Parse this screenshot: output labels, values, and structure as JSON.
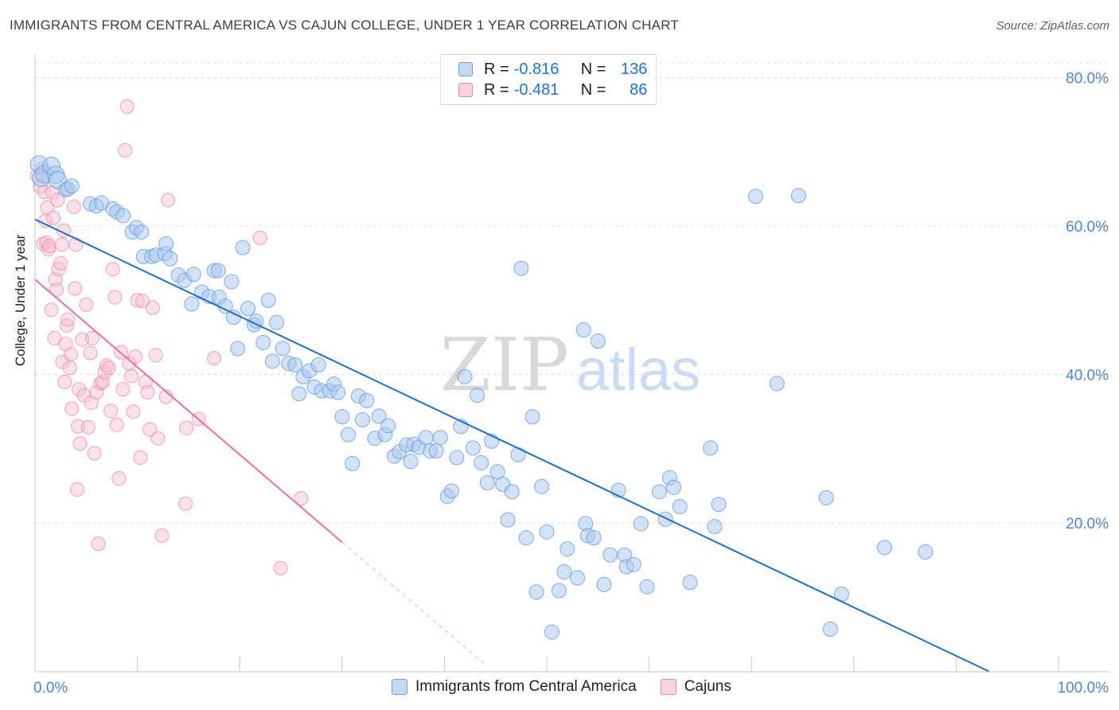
{
  "title": "IMMIGRANTS FROM CENTRAL AMERICA VS CAJUN COLLEGE, UNDER 1 YEAR CORRELATION CHART",
  "source": "Source: ZipAtlas.com",
  "watermark": {
    "zip": "ZIP",
    "atlas": "atlas"
  },
  "legend": {
    "rows": [
      {
        "r_label": "R =",
        "r_value": "-0.816",
        "n_label": "N =",
        "n_value": "136"
      },
      {
        "r_label": "R =",
        "r_value": "-0.481",
        "n_label": "N =",
        "n_value": "86"
      }
    ]
  },
  "colors": {
    "blue_fill": "#a8c7f0",
    "blue_stroke": "#6a9fe0",
    "blue_line": "#1a6fd6",
    "pink_fill": "#f7bfd0",
    "pink_stroke": "#ec8aab",
    "pink_line": "#e8709a",
    "tick_label": "#4a86d8",
    "grid": "#dadce0"
  },
  "chart_data": {
    "type": "scatter",
    "title": "IMMIGRANTS FROM CENTRAL AMERICA VS CAJUN COLLEGE, UNDER 1 YEAR CORRELATION CHART",
    "xlabel": "",
    "ylabel": "College, Under 1 year",
    "xlim": [
      0,
      100
    ],
    "ylim": [
      0,
      85
    ],
    "x_tick_labels": [
      "0.0%",
      "100.0%"
    ],
    "y_ticks": [
      20,
      40,
      60,
      80
    ],
    "y_tick_labels": [
      "20.0%",
      "40.0%",
      "60.0%",
      "80.0%"
    ],
    "grid": true,
    "legend_position": "top-center",
    "series": [
      {
        "name": "Immigrants from Central America",
        "color": "#a8c7f0",
        "trend": {
          "x0": 0,
          "y0": 60.9,
          "x1": 93.2,
          "y1": 0
        },
        "points": [
          [
            0.4,
            68.3
          ],
          [
            0.6,
            66.5
          ],
          [
            0.9,
            67.0
          ],
          [
            1.6,
            68.1
          ],
          [
            2.0,
            66.9
          ],
          [
            2.2,
            66.2
          ],
          [
            3.0,
            64.9
          ],
          [
            3.2,
            65.0
          ],
          [
            3.6,
            65.4
          ],
          [
            5.4,
            63.0
          ],
          [
            6.0,
            62.7
          ],
          [
            6.5,
            63.1
          ],
          [
            7.6,
            62.3
          ],
          [
            8.0,
            61.9
          ],
          [
            8.6,
            61.4
          ],
          [
            9.5,
            59.2
          ],
          [
            9.9,
            59.8
          ],
          [
            10.4,
            59.2
          ],
          [
            10.6,
            55.9
          ],
          [
            11.4,
            55.9
          ],
          [
            11.8,
            56.1
          ],
          [
            12.7,
            56.3
          ],
          [
            12.8,
            57.6
          ],
          [
            13.2,
            55.6
          ],
          [
            14.0,
            53.4
          ],
          [
            14.6,
            52.7
          ],
          [
            15.3,
            49.5
          ],
          [
            15.5,
            53.5
          ],
          [
            16.3,
            51.1
          ],
          [
            17.0,
            50.5
          ],
          [
            17.5,
            54.0
          ],
          [
            17.9,
            54.0
          ],
          [
            18.0,
            50.4
          ],
          [
            18.6,
            49.2
          ],
          [
            19.2,
            52.5
          ],
          [
            19.4,
            47.7
          ],
          [
            19.8,
            43.5
          ],
          [
            20.3,
            57.1
          ],
          [
            20.8,
            48.9
          ],
          [
            21.4,
            46.7
          ],
          [
            21.6,
            47.2
          ],
          [
            22.3,
            44.3
          ],
          [
            22.8,
            50.0
          ],
          [
            23.2,
            41.8
          ],
          [
            23.6,
            47.0
          ],
          [
            24.2,
            43.5
          ],
          [
            24.8,
            41.5
          ],
          [
            25.4,
            41.3
          ],
          [
            25.8,
            37.4
          ],
          [
            26.2,
            39.7
          ],
          [
            26.8,
            40.5
          ],
          [
            27.3,
            38.3
          ],
          [
            27.7,
            41.3
          ],
          [
            28.0,
            37.8
          ],
          [
            28.8,
            37.8
          ],
          [
            29.2,
            38.7
          ],
          [
            29.6,
            37.6
          ],
          [
            30.0,
            34.3
          ],
          [
            30.6,
            31.9
          ],
          [
            31.0,
            28.0
          ],
          [
            31.6,
            37.1
          ],
          [
            32.0,
            33.9
          ],
          [
            32.4,
            36.5
          ],
          [
            33.2,
            31.4
          ],
          [
            33.6,
            34.4
          ],
          [
            34.2,
            31.9
          ],
          [
            34.5,
            33.1
          ],
          [
            35.1,
            29.0
          ],
          [
            35.6,
            29.6
          ],
          [
            36.3,
            30.5
          ],
          [
            36.7,
            28.3
          ],
          [
            37.0,
            30.6
          ],
          [
            37.5,
            30.2
          ],
          [
            38.2,
            31.5
          ],
          [
            38.6,
            29.7
          ],
          [
            39.2,
            29.7
          ],
          [
            39.6,
            31.5
          ],
          [
            40.3,
            23.6
          ],
          [
            40.7,
            24.3
          ],
          [
            41.2,
            28.8
          ],
          [
            41.6,
            33.0
          ],
          [
            42.0,
            39.7
          ],
          [
            42.8,
            30.1
          ],
          [
            43.2,
            37.2
          ],
          [
            43.6,
            28.1
          ],
          [
            44.2,
            25.4
          ],
          [
            44.6,
            31.0
          ],
          [
            45.2,
            26.9
          ],
          [
            45.7,
            25.2
          ],
          [
            46.2,
            20.4
          ],
          [
            46.6,
            24.2
          ],
          [
            47.2,
            29.2
          ],
          [
            47.5,
            54.3
          ],
          [
            48.0,
            18.0
          ],
          [
            48.6,
            34.3
          ],
          [
            49.0,
            10.7
          ],
          [
            49.5,
            24.9
          ],
          [
            50.0,
            18.8
          ],
          [
            50.5,
            5.3
          ],
          [
            51.2,
            10.9
          ],
          [
            51.7,
            13.4
          ],
          [
            52.0,
            16.5
          ],
          [
            53.0,
            12.6
          ],
          [
            53.6,
            46.0
          ],
          [
            53.8,
            19.9
          ],
          [
            54.0,
            18.3
          ],
          [
            54.6,
            18.0
          ],
          [
            55.0,
            44.5
          ],
          [
            55.6,
            11.7
          ],
          [
            56.2,
            15.7
          ],
          [
            57.0,
            24.4
          ],
          [
            57.6,
            15.7
          ],
          [
            57.8,
            14.1
          ],
          [
            58.5,
            14.4
          ],
          [
            59.2,
            19.9
          ],
          [
            59.8,
            11.4
          ],
          [
            61.0,
            24.2
          ],
          [
            61.6,
            20.5
          ],
          [
            62.0,
            26.1
          ],
          [
            62.4,
            24.8
          ],
          [
            63.0,
            22.2
          ],
          [
            64.0,
            12.0
          ],
          [
            66.0,
            30.1
          ],
          [
            66.4,
            19.5
          ],
          [
            66.8,
            22.5
          ],
          [
            70.4,
            64.0
          ],
          [
            72.5,
            38.8
          ],
          [
            74.6,
            64.1
          ],
          [
            77.3,
            23.4
          ],
          [
            77.7,
            5.7
          ],
          [
            78.8,
            10.4
          ],
          [
            83.0,
            16.7
          ],
          [
            87.0,
            16.1
          ]
        ]
      },
      {
        "name": "Cajuns",
        "color": "#f7bfd0",
        "trend": {
          "x0": 0,
          "y0": 52.8,
          "x1": 30.0,
          "y1": 17.4,
          "dash_x1": 44.0
        },
        "points": [
          [
            0.2,
            66.8
          ],
          [
            0.5,
            65.3
          ],
          [
            0.7,
            67.7
          ],
          [
            0.8,
            57.6
          ],
          [
            0.9,
            64.6
          ],
          [
            1.0,
            60.7
          ],
          [
            1.1,
            57.8
          ],
          [
            1.2,
            62.5
          ],
          [
            1.3,
            56.9
          ],
          [
            1.4,
            57.3
          ],
          [
            1.6,
            48.7
          ],
          [
            1.7,
            64.5
          ],
          [
            1.8,
            61.1
          ],
          [
            1.9,
            44.9
          ],
          [
            2.0,
            52.8
          ],
          [
            2.1,
            51.4
          ],
          [
            2.2,
            63.5
          ],
          [
            2.3,
            54.2
          ],
          [
            2.5,
            55.0
          ],
          [
            2.6,
            57.5
          ],
          [
            2.7,
            41.7
          ],
          [
            2.8,
            59.4
          ],
          [
            2.9,
            39.0
          ],
          [
            3.0,
            44.1
          ],
          [
            3.1,
            46.6
          ],
          [
            3.2,
            47.4
          ],
          [
            3.4,
            40.9
          ],
          [
            3.5,
            42.7
          ],
          [
            3.6,
            35.4
          ],
          [
            3.8,
            62.6
          ],
          [
            3.9,
            51.6
          ],
          [
            4.0,
            57.5
          ],
          [
            4.1,
            24.5
          ],
          [
            4.2,
            33.0
          ],
          [
            4.3,
            38.0
          ],
          [
            4.4,
            30.7
          ],
          [
            4.6,
            44.7
          ],
          [
            4.8,
            37.2
          ],
          [
            5.0,
            49.4
          ],
          [
            5.2,
            32.9
          ],
          [
            5.4,
            42.9
          ],
          [
            5.5,
            36.2
          ],
          [
            5.6,
            44.9
          ],
          [
            5.8,
            29.4
          ],
          [
            6.0,
            37.6
          ],
          [
            6.2,
            17.2
          ],
          [
            6.4,
            38.8
          ],
          [
            6.6,
            39.0
          ],
          [
            6.8,
            40.3
          ],
          [
            7.0,
            41.2
          ],
          [
            7.2,
            40.9
          ],
          [
            7.4,
            35.1
          ],
          [
            7.6,
            54.2
          ],
          [
            7.8,
            50.4
          ],
          [
            8.0,
            33.2
          ],
          [
            8.2,
            26.0
          ],
          [
            8.4,
            43.0
          ],
          [
            8.6,
            38.0
          ],
          [
            8.8,
            70.2
          ],
          [
            9.0,
            76.1
          ],
          [
            9.2,
            41.5
          ],
          [
            9.4,
            39.8
          ],
          [
            9.6,
            35.0
          ],
          [
            9.8,
            42.4
          ],
          [
            10.0,
            50.0
          ],
          [
            10.3,
            28.8
          ],
          [
            10.5,
            49.9
          ],
          [
            10.8,
            39.0
          ],
          [
            11.0,
            37.6
          ],
          [
            11.2,
            32.6
          ],
          [
            11.5,
            49.0
          ],
          [
            11.8,
            42.6
          ],
          [
            12.0,
            31.4
          ],
          [
            12.4,
            18.3
          ],
          [
            12.8,
            37.0
          ],
          [
            13.0,
            63.5
          ],
          [
            14.7,
            22.6
          ],
          [
            14.8,
            32.8
          ],
          [
            16.0,
            34.0
          ],
          [
            17.5,
            42.2
          ],
          [
            22.0,
            58.4
          ],
          [
            24.0,
            13.9
          ],
          [
            26.0,
            23.3
          ]
        ]
      }
    ]
  }
}
